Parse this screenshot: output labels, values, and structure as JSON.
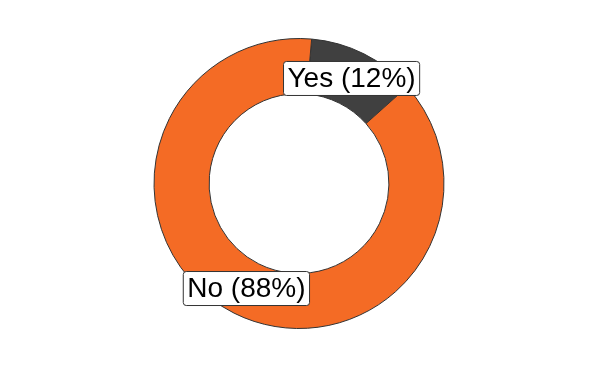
{
  "chart_data": {
    "type": "doughnut",
    "categories": [
      "Yes",
      "No"
    ],
    "values": [
      12,
      88
    ],
    "value_labels": [
      "Yes (12%)",
      "No (88%)"
    ],
    "data_labels": true,
    "colors": [
      "#404040",
      "#f46b25"
    ]
  }
}
